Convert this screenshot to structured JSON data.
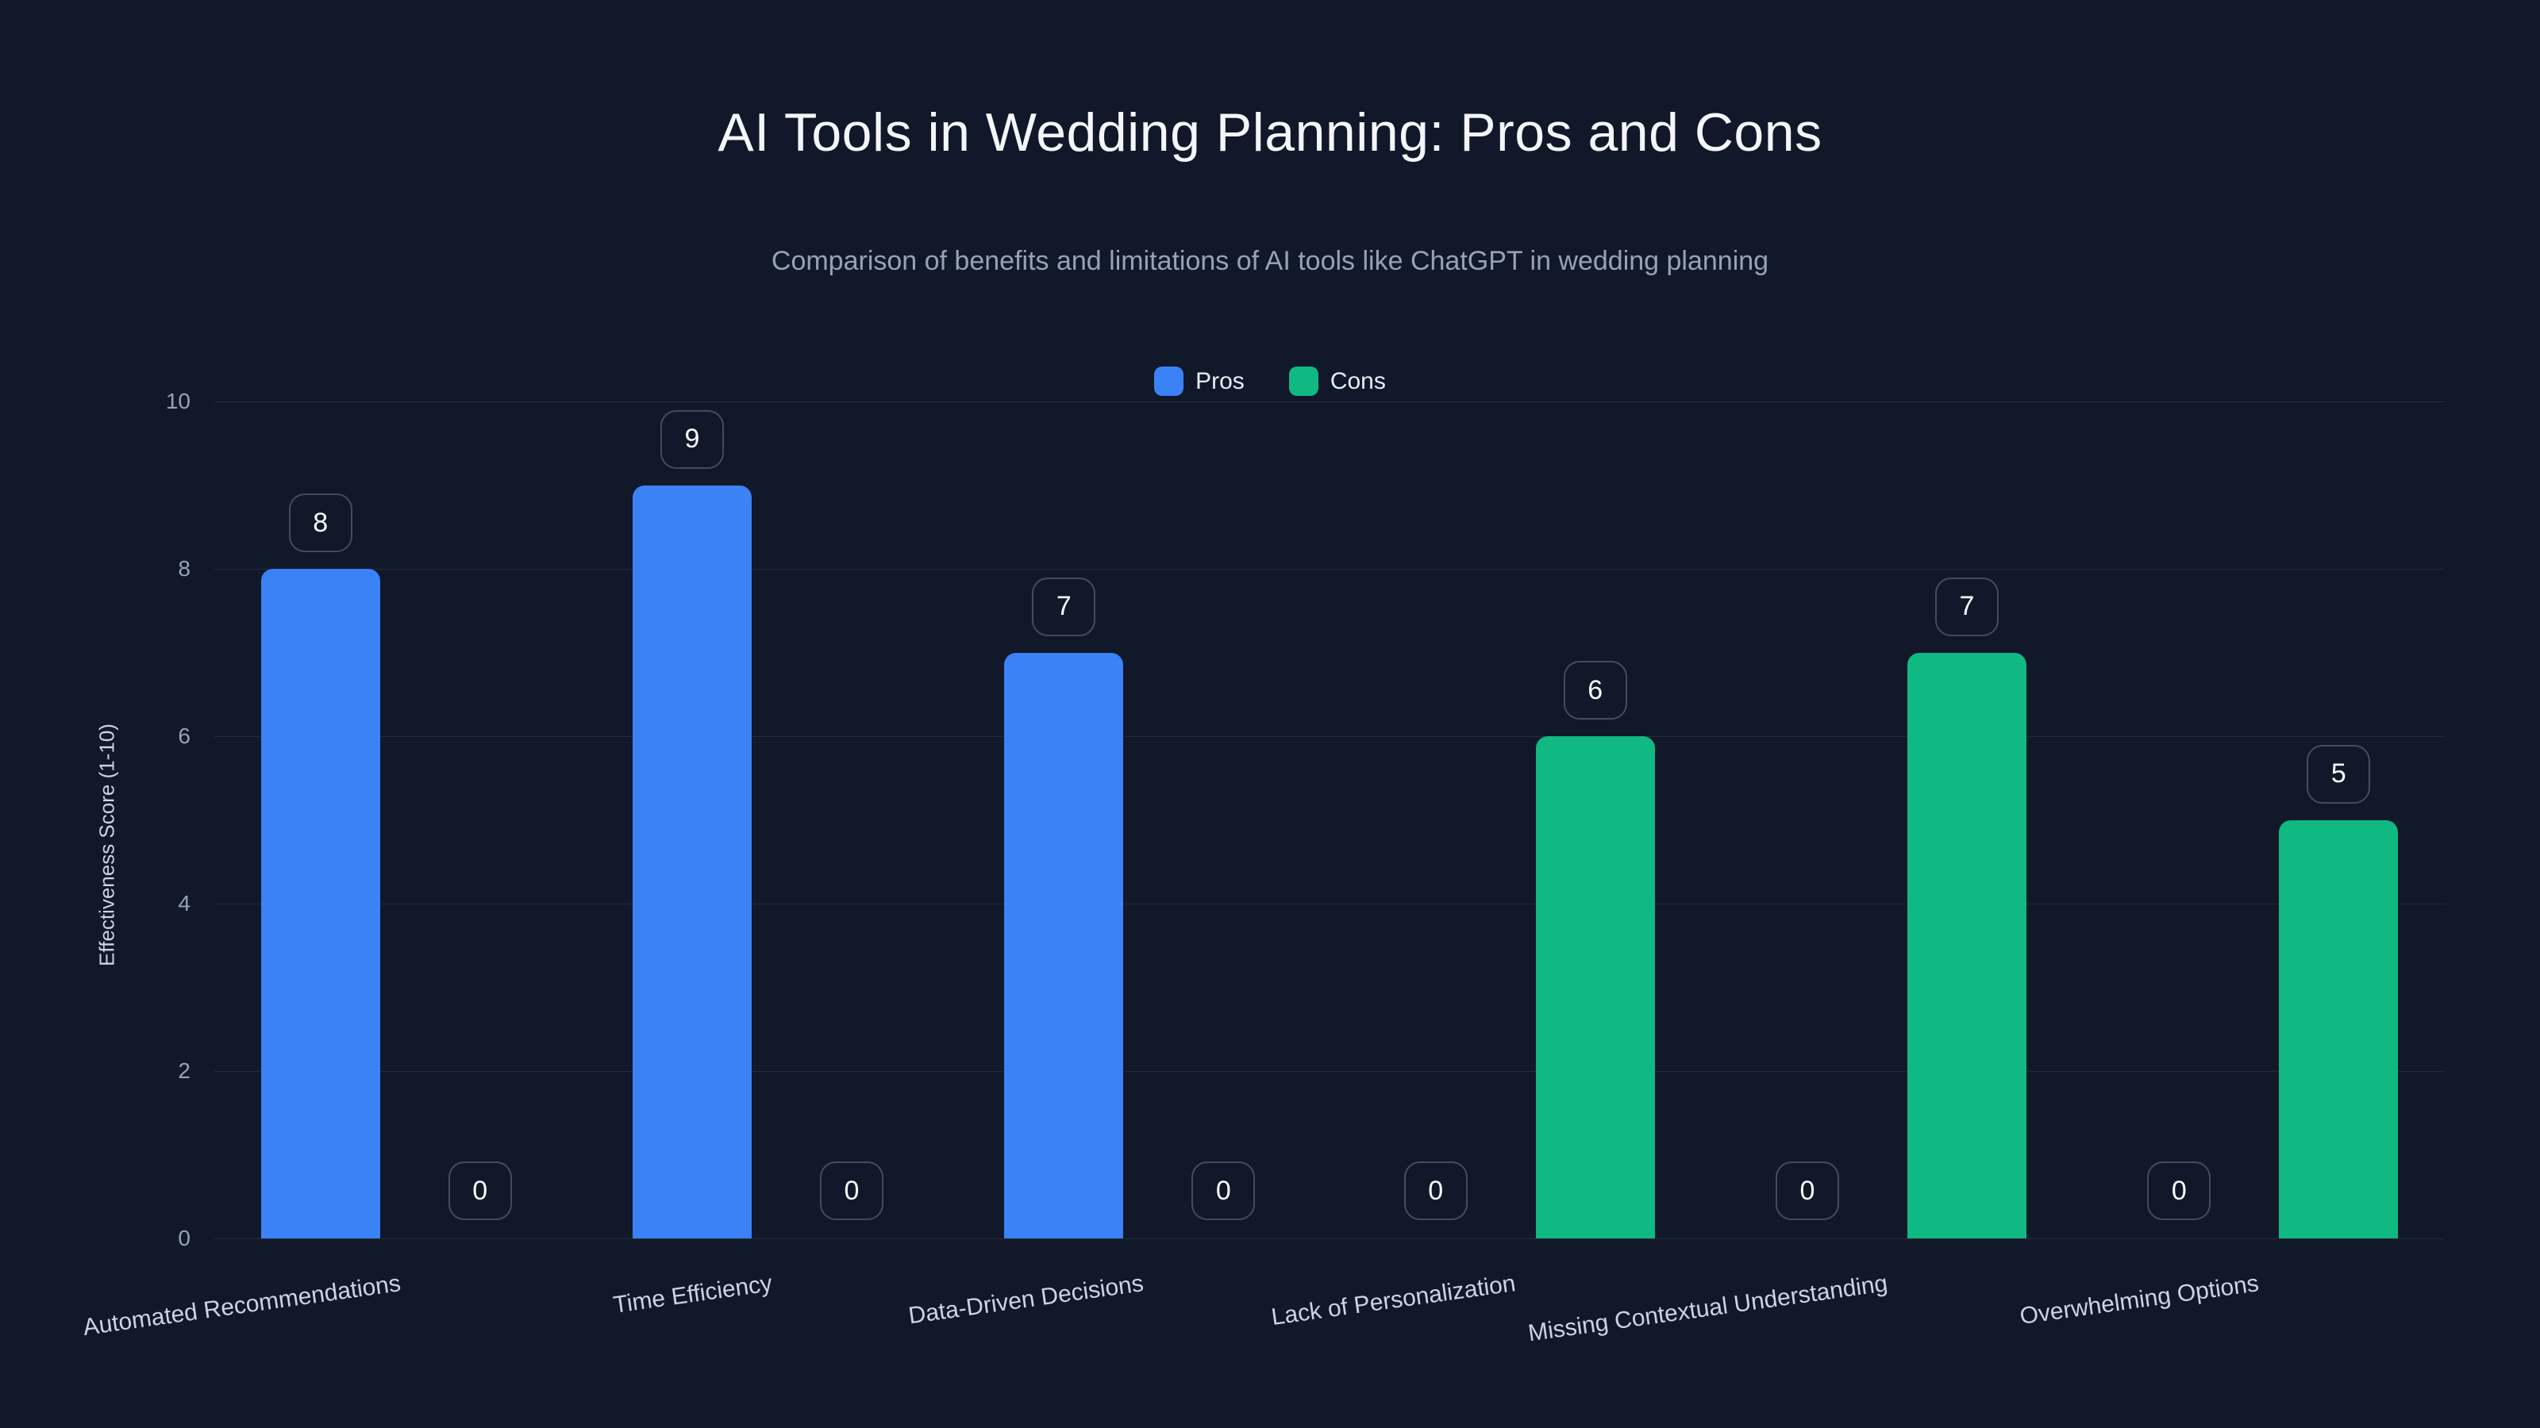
{
  "chart_data": {
    "type": "bar",
    "title": "AI Tools in Wedding Planning: Pros and Cons",
    "subtitle": "Comparison of benefits and limitations of AI tools like ChatGPT in wedding planning",
    "categories": [
      "Automated Recommendations",
      "Time Efficiency",
      "Data-Driven Decisions",
      "Lack of Personalization",
      "Missing Contextual Understanding",
      "Overwhelming Options"
    ],
    "series": [
      {
        "name": "Pros",
        "color": "#3b82f6",
        "values": [
          8,
          9,
          7,
          0,
          0,
          0
        ]
      },
      {
        "name": "Cons",
        "color": "#10b981",
        "values": [
          0,
          0,
          0,
          6,
          7,
          5
        ]
      }
    ],
    "ylabel": "Effectiveness Score (1-10)",
    "ylim": [
      0,
      10
    ],
    "yticks": [
      0,
      2,
      4,
      6,
      8,
      10
    ],
    "grid": true,
    "legend_position": "top",
    "value_labels_in_badges": true
  },
  "colors": {
    "background": "#111829",
    "grid": "rgba(148,163,184,0.14)",
    "axis_tick_text": "#94a3b8",
    "axis_title_text": "#cbd5e1",
    "category_text": "#cbd5e1",
    "title_text": "#f3f6fb",
    "subtitle_text": "#94a3b8",
    "legend_text": "#e8edf4",
    "badge_border": "rgba(148,163,184,0.38)",
    "badge_text": "#f8fafc"
  }
}
